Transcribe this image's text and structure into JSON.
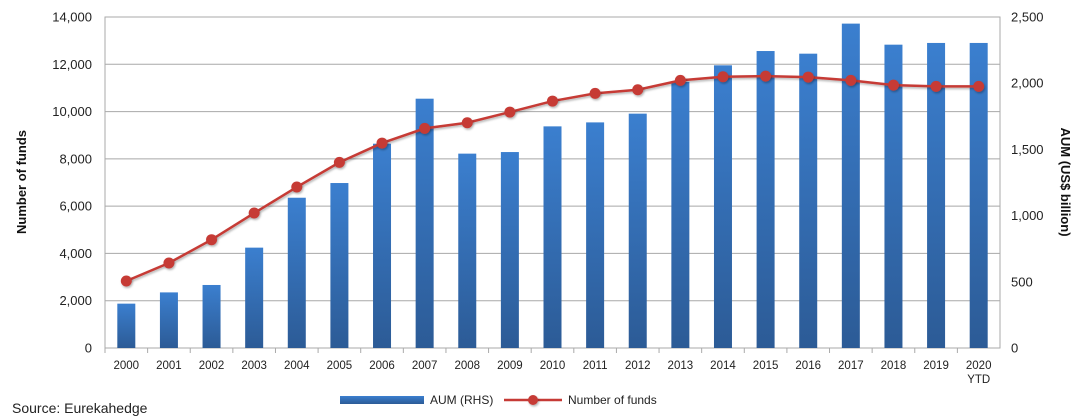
{
  "chart_data": {
    "type": "bar+line",
    "source": "Source: Eurekahedge",
    "categories": [
      "2000",
      "2001",
      "2002",
      "2003",
      "2004",
      "2005",
      "2006",
      "2007",
      "2008",
      "2009",
      "2010",
      "2011",
      "2012",
      "2013",
      "2014",
      "2015",
      "2016",
      "2017",
      "2018",
      "2019",
      "2020"
    ],
    "category_sublabels": {
      "2020": "YTD"
    },
    "ylabel_left": "Number of funds",
    "ylabel_right": "AUM (US$ billion)",
    "ylim_left": [
      0,
      14000
    ],
    "ylim_right": [
      0,
      2500
    ],
    "yticks_left": [
      "0",
      "2,000",
      "4,000",
      "6,000",
      "8,000",
      "10,000",
      "12,000",
      "14,000"
    ],
    "yticks_right": [
      "0",
      "500",
      "1,000",
      "1,500",
      "2,000",
      "2,500"
    ],
    "grid": true,
    "legend_position": "bottom",
    "series": [
      {
        "name": "AUM (RHS)",
        "type": "bar",
        "axis": "right",
        "color": "#3a78c4",
        "values": [
          335,
          420,
          476,
          758,
          1135,
          1246,
          1543,
          1883,
          1468,
          1480,
          1674,
          1704,
          1770,
          2010,
          2135,
          2243,
          2223,
          2450,
          2291,
          2304,
          2304
        ]
      },
      {
        "name": "Number of funds",
        "type": "line",
        "axis": "left",
        "color": "#c63a36",
        "values": [
          2833,
          3594,
          4581,
          5708,
          6808,
          7851,
          8668,
          9288,
          9528,
          9979,
          10444,
          10768,
          10923,
          11318,
          11473,
          11501,
          11459,
          11318,
          11120,
          11064,
          11064
        ]
      }
    ]
  }
}
